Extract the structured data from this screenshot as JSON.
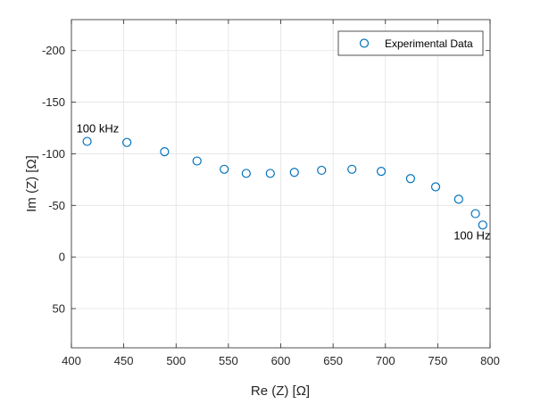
{
  "chart_data": {
    "type": "scatter",
    "title": "",
    "xlabel": "Re (Z) [Ω]",
    "ylabel": "Im (Z) [Ω]",
    "xlim": [
      400,
      800
    ],
    "ylim": [
      -230,
      88
    ],
    "y_reversed": true,
    "grid": true,
    "legend_position": "top-right",
    "xticks": [
      400,
      450,
      500,
      550,
      600,
      650,
      700,
      750,
      800
    ],
    "xtick_labels": [
      "400",
      "450",
      "500",
      "550",
      "600",
      "650",
      "700",
      "750",
      "800"
    ],
    "yticks": [
      -200,
      -150,
      -100,
      -50,
      0,
      50
    ],
    "ytick_labels": [
      "-200",
      "-150",
      "-100",
      "-50",
      "0",
      "50"
    ],
    "series": [
      {
        "name": "Experimental Data",
        "marker": "circle-open",
        "color": "#0072BD",
        "points": [
          {
            "x": 415,
            "y": -112
          },
          {
            "x": 453,
            "y": -111
          },
          {
            "x": 489,
            "y": -102
          },
          {
            "x": 520,
            "y": -93
          },
          {
            "x": 546,
            "y": -85
          },
          {
            "x": 567,
            "y": -81
          },
          {
            "x": 590,
            "y": -81
          },
          {
            "x": 613,
            "y": -82
          },
          {
            "x": 639,
            "y": -84
          },
          {
            "x": 668,
            "y": -85
          },
          {
            "x": 696,
            "y": -83
          },
          {
            "x": 724,
            "y": -76
          },
          {
            "x": 748,
            "y": -68
          },
          {
            "x": 770,
            "y": -56
          },
          {
            "x": 786,
            "y": -42
          },
          {
            "x": 793,
            "y": -31
          }
        ]
      }
    ],
    "annotations": [
      {
        "text": "100 kHz",
        "x": 415,
        "y": -112
      },
      {
        "text": "100 Hz",
        "x": 793,
        "y": -31
      }
    ]
  }
}
